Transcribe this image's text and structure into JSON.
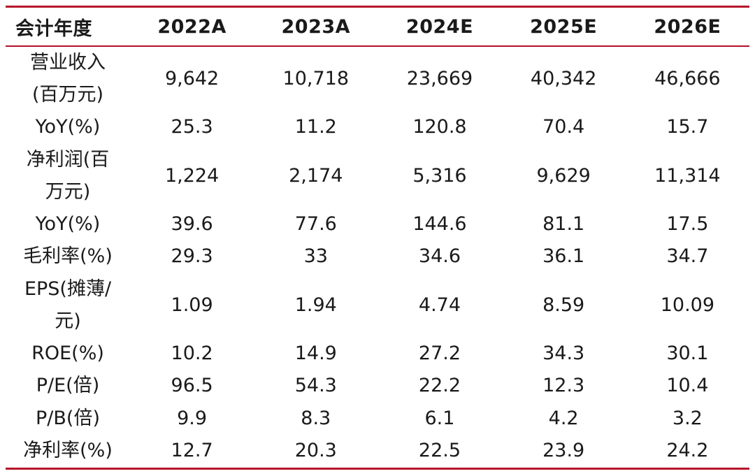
{
  "table": {
    "header": {
      "label": "会计年度",
      "years": [
        "2022A",
        "2023A",
        "2024E",
        "2025E",
        "2026E"
      ]
    },
    "rows": [
      {
        "label_lines": [
          "营业收入",
          "(百万元)"
        ],
        "values": [
          "9,642",
          "10,718",
          "23,669",
          "40,342",
          "46,666"
        ]
      },
      {
        "label_lines": [
          "YoY(%)"
        ],
        "values": [
          "25.3",
          "11.2",
          "120.8",
          "70.4",
          "15.7"
        ]
      },
      {
        "label_lines": [
          "净利润(百",
          "万元)"
        ],
        "values": [
          "1,224",
          "2,174",
          "5,316",
          "9,629",
          "11,314"
        ]
      },
      {
        "label_lines": [
          "YoY(%)"
        ],
        "values": [
          "39.6",
          "77.6",
          "144.6",
          "81.1",
          "17.5"
        ]
      },
      {
        "label_lines": [
          "毛利率(%)"
        ],
        "values": [
          "29.3",
          "33",
          "34.6",
          "36.1",
          "34.7"
        ]
      },
      {
        "label_lines": [
          "EPS(摊薄/",
          "元)"
        ],
        "values": [
          "1.09",
          "1.94",
          "4.74",
          "8.59",
          "10.09"
        ]
      },
      {
        "label_lines": [
          "ROE(%)"
        ],
        "values": [
          "10.2",
          "14.9",
          "27.2",
          "34.3",
          "30.1"
        ]
      },
      {
        "label_lines": [
          "P/E(倍)"
        ],
        "values": [
          "96.5",
          "54.3",
          "22.2",
          "12.3",
          "10.4"
        ]
      },
      {
        "label_lines": [
          "P/B(倍)"
        ],
        "values": [
          "9.9",
          "8.3",
          "6.1",
          "4.2",
          "3.2"
        ]
      },
      {
        "label_lines": [
          "净利率(%)"
        ],
        "values": [
          "12.7",
          "20.3",
          "22.5",
          "23.9",
          "24.2"
        ]
      }
    ]
  },
  "colors": {
    "rule": "#b5122a",
    "text": "#1a1a1a"
  }
}
